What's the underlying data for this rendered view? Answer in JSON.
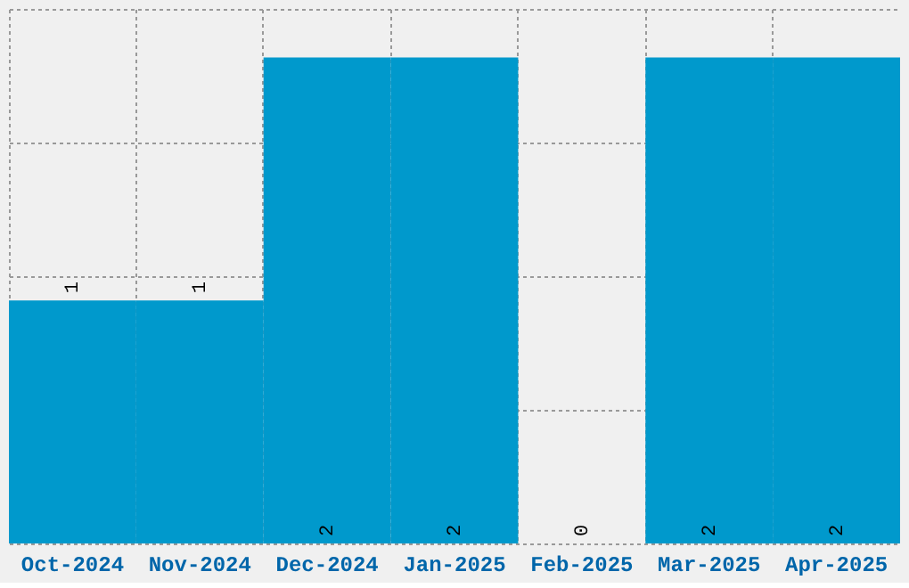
{
  "chart_data": {
    "type": "bar",
    "categories": [
      "Oct-2024",
      "Nov-2024",
      "Dec-2024",
      "Jan-2025",
      "Feb-2025",
      "Mar-2025",
      "Apr-2025"
    ],
    "values": [
      1,
      1,
      2,
      2,
      0,
      2,
      2
    ],
    "color": "#0099cc",
    "ylim": [
      0,
      2.2
    ],
    "yticks": [
      {
        "value": 0,
        "label": null
      },
      {
        "value": 0.55,
        "label": null
      },
      {
        "value": 1.1,
        "label": null
      },
      {
        "value": 1.65,
        "label": null
      },
      {
        "value": 2.2,
        "label": null
      }
    ],
    "tick_labels": "x",
    "grid": true,
    "data_labels": true
  }
}
